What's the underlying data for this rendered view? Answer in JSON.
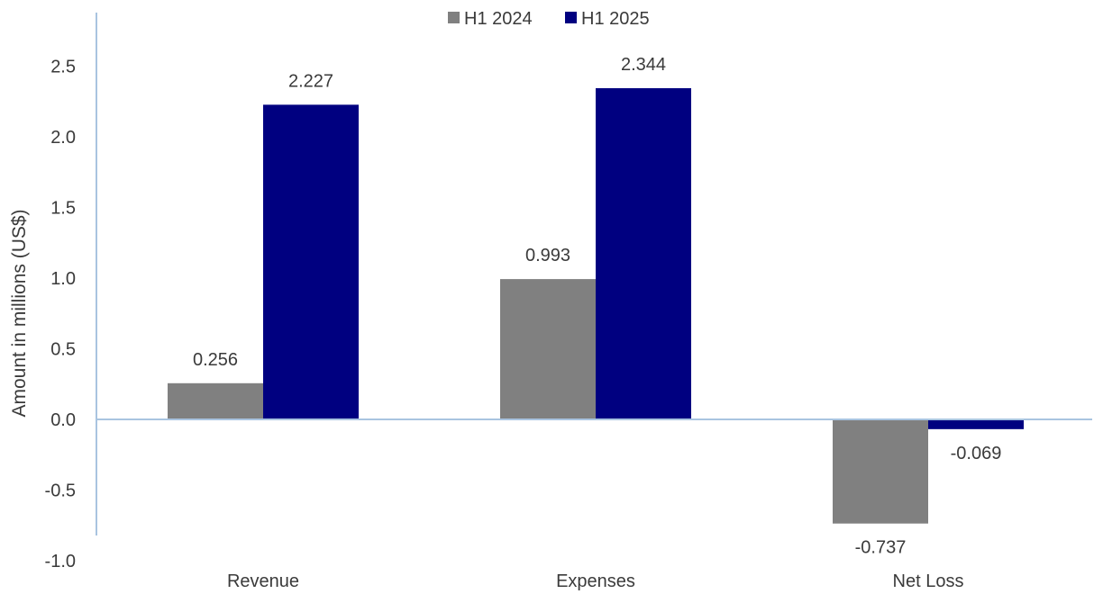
{
  "chart_data": {
    "type": "bar",
    "ylabel": "Amount in millions (US$)",
    "xlabel": "",
    "categories": [
      "Revenue",
      "Expenses",
      "Net Loss"
    ],
    "series": [
      {
        "name": "H1 2024",
        "color": "#808080",
        "values": [
          0.256,
          0.993,
          -0.737
        ]
      },
      {
        "name": "H1 2025",
        "color": "#000080",
        "values": [
          2.227,
          2.344,
          -0.069
        ]
      }
    ],
    "data_labels": [
      [
        "0.256",
        "0.993",
        "-0.737"
      ],
      [
        "2.227",
        "2.344",
        "-0.069"
      ]
    ],
    "ylim": [
      -1.0,
      2.5
    ],
    "yticks": [
      -1.0,
      -0.5,
      0.0,
      0.5,
      1.0,
      1.5,
      2.0,
      2.5
    ],
    "ytick_labels": [
      "-1.0",
      "-0.5",
      "0.0",
      "0.5",
      "1.0",
      "1.5",
      "2.0",
      "2.5"
    ],
    "legend_position": "top",
    "grid": false,
    "axis_color": "#a9c4e0"
  }
}
